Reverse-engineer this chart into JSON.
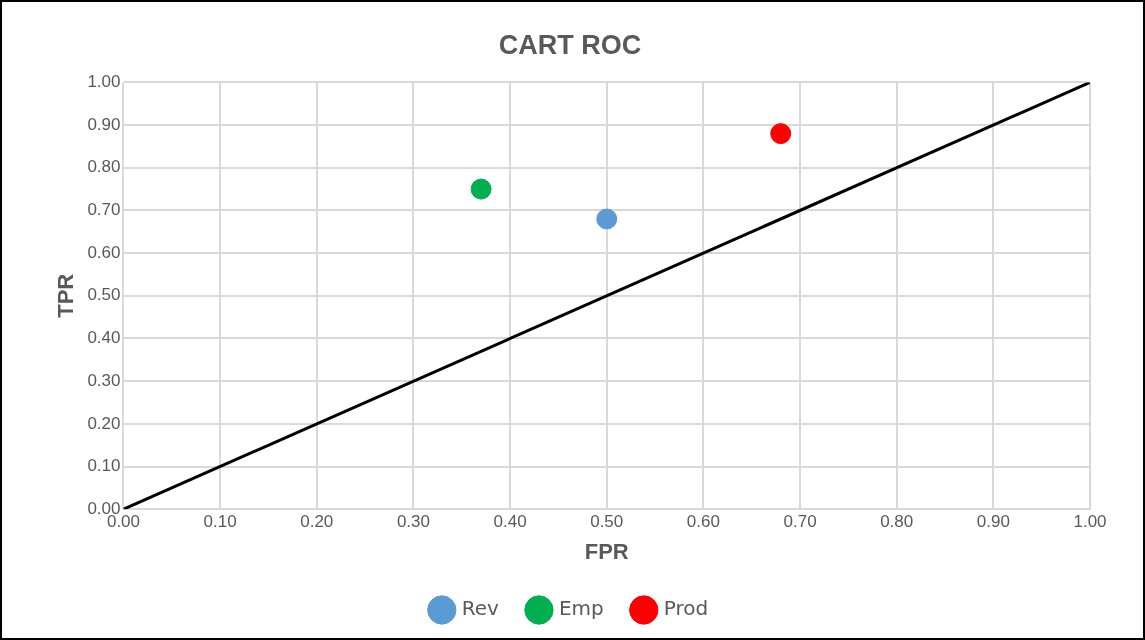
{
  "chart_data": {
    "type": "scatter",
    "title": "CART ROC",
    "xlabel": "FPR",
    "ylabel": "TPR",
    "xlim": [
      0,
      1
    ],
    "ylim": [
      0,
      1
    ],
    "xticks": [
      {
        "value": 0,
        "label": "0.00"
      },
      {
        "value": 0.1,
        "label": "0.10"
      },
      {
        "value": 0.2,
        "label": "0.20"
      },
      {
        "value": 0.3,
        "label": "0.30"
      },
      {
        "value": 0.4,
        "label": "0.40"
      },
      {
        "value": 0.5,
        "label": "0.50"
      },
      {
        "value": 0.6,
        "label": "0.60"
      },
      {
        "value": 0.7,
        "label": "0.70"
      },
      {
        "value": 0.8,
        "label": "0.80"
      },
      {
        "value": 0.9,
        "label": "0.90"
      },
      {
        "value": 1,
        "label": "1.00"
      }
    ],
    "yticks": [
      {
        "value": 0,
        "label": "0.00"
      },
      {
        "value": 0.1,
        "label": "0.10"
      },
      {
        "value": 0.2,
        "label": "0.20"
      },
      {
        "value": 0.3,
        "label": "0.30"
      },
      {
        "value": 0.4,
        "label": "0.40"
      },
      {
        "value": 0.5,
        "label": "0.50"
      },
      {
        "value": 0.6,
        "label": "0.60"
      },
      {
        "value": 0.7,
        "label": "0.70"
      },
      {
        "value": 0.8,
        "label": "0.80"
      },
      {
        "value": 0.9,
        "label": "0.90"
      },
      {
        "value": 1,
        "label": "1.00"
      }
    ],
    "grid": true,
    "legend": "bottom",
    "marker": "circle",
    "series": [
      {
        "name": "Rev",
        "color": "#5b9bd5",
        "x": [
          0.5
        ],
        "values": [
          0.68
        ]
      },
      {
        "name": "Emp",
        "color": "#00b050",
        "x": [
          0.37
        ],
        "values": [
          0.75
        ]
      },
      {
        "name": "Prod",
        "color": "#ff0000",
        "x": [
          0.68
        ],
        "values": [
          0.88
        ]
      },
      {
        "type": "line",
        "color": "#000000",
        "x": [
          0,
          1
        ],
        "values": [
          0,
          1
        ],
        "marker": "none",
        "line_style": "solid"
      }
    ]
  }
}
